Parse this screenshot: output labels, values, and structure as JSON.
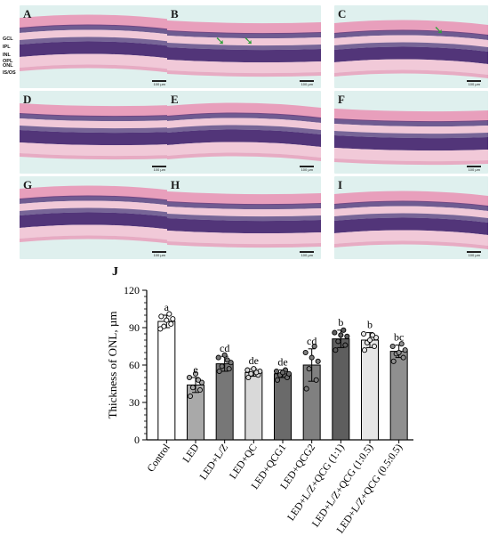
{
  "panels": [
    {
      "label": "A",
      "scale": "100 µm"
    },
    {
      "label": "B",
      "scale": "100 µm"
    },
    {
      "label": "C",
      "scale": "100 µm"
    },
    {
      "label": "D",
      "scale": "100 µm"
    },
    {
      "label": "E",
      "scale": "100 µm"
    },
    {
      "label": "F",
      "scale": "100 µm"
    },
    {
      "label": "G",
      "scale": "100 µm"
    },
    {
      "label": "H",
      "scale": "100 µm"
    },
    {
      "label": "I",
      "scale": "100 µm"
    }
  ],
  "retina_layer_labels": [
    "GCL",
    "IPL",
    "INL",
    "OPL",
    "ONL",
    "IS/OS"
  ],
  "colors": {
    "tissue_pink": "#e89ab8",
    "tissue_light": "#f1c9d8",
    "nuclei_purple": "#4a2a72",
    "background_cyan": "#dff0ee",
    "arrow_green": "#2fa03a",
    "control_bar": "#ffffff",
    "led_bar": "#a9a9a9",
    "lz_bar": "#777777",
    "qc_bar": "#d9d9d9",
    "qcg1_bar": "#6a6a6a",
    "qcg2_bar": "#808080",
    "combo1_bar": "#5e5e5e",
    "combo2_bar": "#e6e6e6",
    "combo3_bar": "#8f8f8f"
  },
  "chart_label": "J",
  "chart_data": {
    "type": "bar",
    "ylabel": "Thickness of ONL, µm",
    "ylim": [
      0,
      120
    ],
    "yticks": [
      0,
      30,
      60,
      90,
      120
    ],
    "categories": [
      "Control",
      "LED",
      "LED+L/Z",
      "LED+QC",
      "LED+QCG1",
      "LED+QCG2",
      "LED+L/Z+QCG (1:1)",
      "LED+L/Z+QCG (1:0.5)",
      "LED+L/Z+QCG (0.5:0.5)"
    ],
    "values": [
      95,
      44,
      61,
      54,
      53,
      60,
      81,
      80,
      71
    ],
    "errors": [
      5,
      6,
      6,
      3,
      3,
      13,
      7,
      6,
      5
    ],
    "significance": [
      "a",
      "e",
      "cd",
      "de",
      "de",
      "cd",
      "b",
      "b",
      "bc"
    ],
    "points": [
      [
        99,
        93,
        91,
        97,
        89,
        101,
        96
      ],
      [
        35,
        40,
        42,
        46,
        50,
        48,
        53
      ],
      [
        55,
        57,
        59,
        62,
        66,
        64,
        68
      ],
      [
        50,
        52,
        53,
        55,
        56,
        54,
        57
      ],
      [
        48,
        50,
        52,
        53,
        55,
        56,
        54
      ],
      [
        41,
        48,
        57,
        63,
        70,
        75,
        66
      ],
      [
        72,
        76,
        79,
        83,
        86,
        88,
        84
      ],
      [
        72,
        75,
        78,
        82,
        85,
        84,
        80
      ],
      [
        63,
        66,
        69,
        72,
        75,
        77,
        70
      ]
    ],
    "bar_colors": [
      "#ffffff",
      "#a9a9a9",
      "#777777",
      "#d9d9d9",
      "#6a6a6a",
      "#808080",
      "#5e5e5e",
      "#e6e6e6",
      "#8f8f8f"
    ],
    "grid": false
  }
}
